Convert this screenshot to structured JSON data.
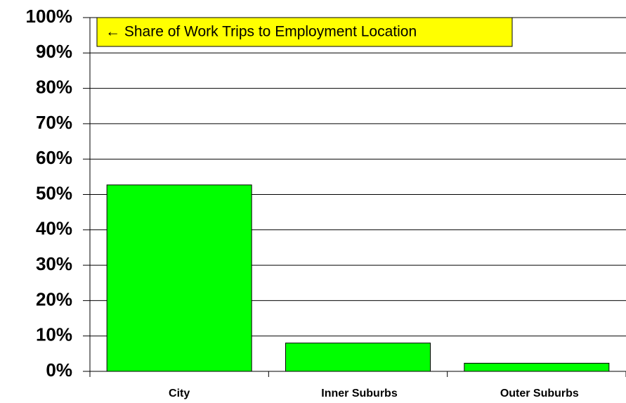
{
  "chart_data": {
    "type": "bar",
    "annotation": "← Share of Work Trips to Employment Location",
    "categories": [
      "City",
      "Inner Suburbs",
      "Outer Suburbs"
    ],
    "values": [
      52.7,
      8.0,
      2.3
    ],
    "color": "#00ff00",
    "ylim": [
      0,
      100
    ],
    "yticks": [
      {
        "value": 0,
        "label": "0%"
      },
      {
        "value": 10,
        "label": "10%"
      },
      {
        "value": 20,
        "label": "20%"
      },
      {
        "value": 30,
        "label": "30%"
      },
      {
        "value": 40,
        "label": "40%"
      },
      {
        "value": 50,
        "label": "50%"
      },
      {
        "value": 60,
        "label": "60%"
      },
      {
        "value": 70,
        "label": "70%"
      },
      {
        "value": 80,
        "label": "80%"
      },
      {
        "value": 90,
        "label": "90%"
      },
      {
        "value": 100,
        "label": "100%"
      }
    ],
    "grid": true
  }
}
